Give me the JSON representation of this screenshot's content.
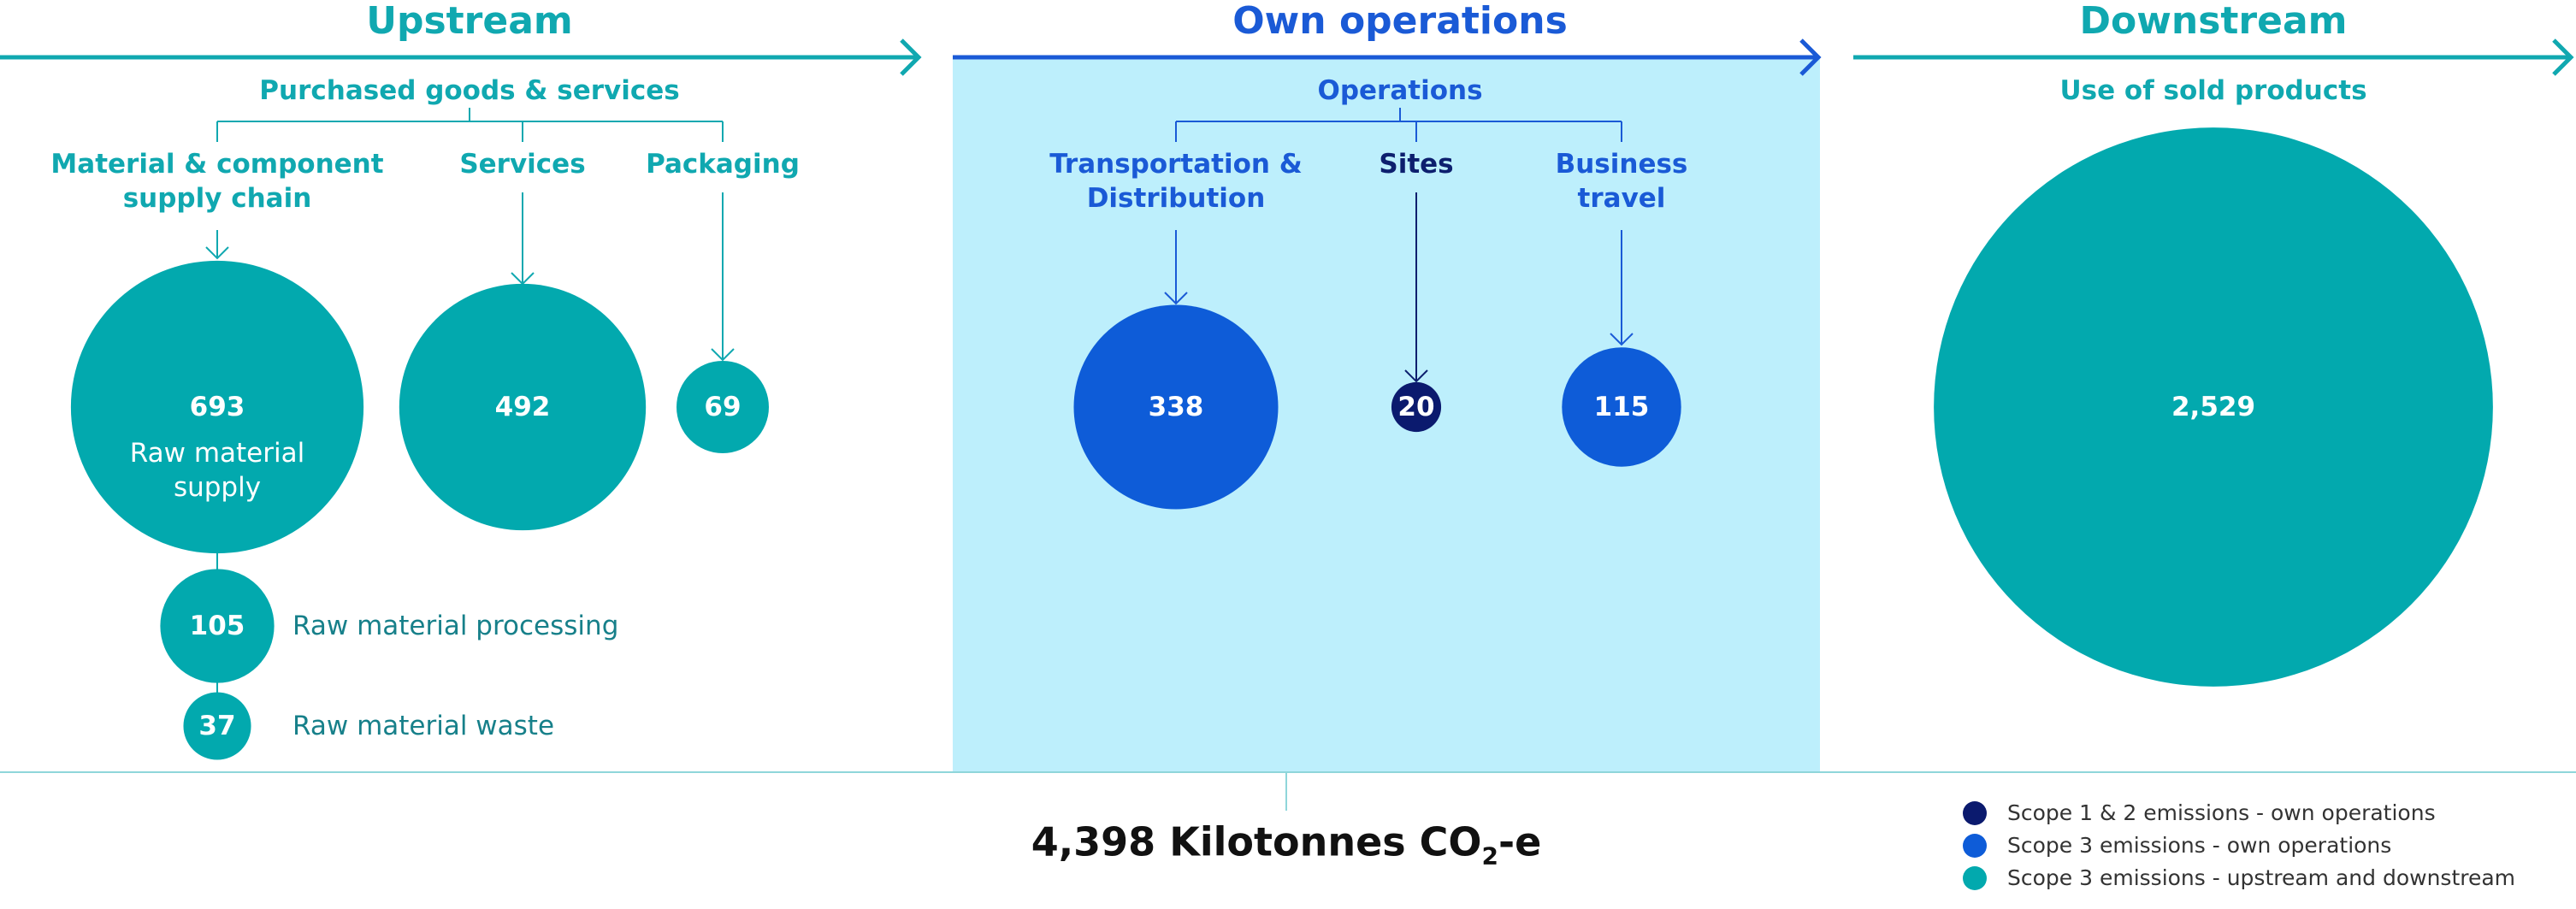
{
  "sections": [
    {
      "title": "Upstream",
      "color": "#10a8b0",
      "group": "Purchased goods & services",
      "columns": [
        {
          "label": "Material & component supply chain",
          "label_color": "#10a8b0",
          "bubble": {
            "value": 693,
            "caption": "Raw material supply",
            "color": "#02a9ae"
          }
        },
        {
          "label": "Services",
          "label_color": "#10a8b0",
          "bubble": {
            "value": 492,
            "color": "#02a9ae"
          }
        },
        {
          "label": "Packaging",
          "label_color": "#10a8b0",
          "bubble": {
            "value": 69,
            "color": "#02a9ae"
          }
        }
      ],
      "sub_bubbles": [
        {
          "value": 105,
          "caption": "Raw material processing",
          "color": "#02a9ae"
        },
        {
          "value": 37,
          "caption": "Raw material waste",
          "color": "#02a9ae"
        }
      ]
    },
    {
      "title": "Own operations",
      "color": "#1a5ad6",
      "group": "Operations",
      "columns": [
        {
          "label": "Transportation & Distribution",
          "label_color": "#1a5ad6",
          "bubble": {
            "value": 338,
            "color": "#0e5cd8"
          }
        },
        {
          "label": "Sites",
          "label_color": "#0d1f6e",
          "bubble": {
            "value": 20,
            "color": "#0b1a6e"
          }
        },
        {
          "label": "Business travel",
          "label_color": "#1a5ad6",
          "bubble": {
            "value": 115,
            "color": "#0e5cd8"
          }
        }
      ]
    },
    {
      "title": "Downstream",
      "color": "#10a8b0",
      "group": "Use of sold products",
      "columns": [
        {
          "bubble": {
            "value": 2529,
            "value_label": "2,529",
            "color": "#02a9ae"
          }
        }
      ]
    }
  ],
  "total": {
    "text": "4,398 Kilotonnes CO",
    "subscript": "2",
    "suffix": "-e"
  },
  "legend": [
    {
      "label": "Scope 1 & 2 emissions - own operations",
      "color": "#0b1a6e"
    },
    {
      "label": "Scope 3 emissions - own operations",
      "color": "#0e5cd8"
    },
    {
      "label": "Scope 3 emissions - upstream and downstream",
      "color": "#02a9ae"
    }
  ]
}
